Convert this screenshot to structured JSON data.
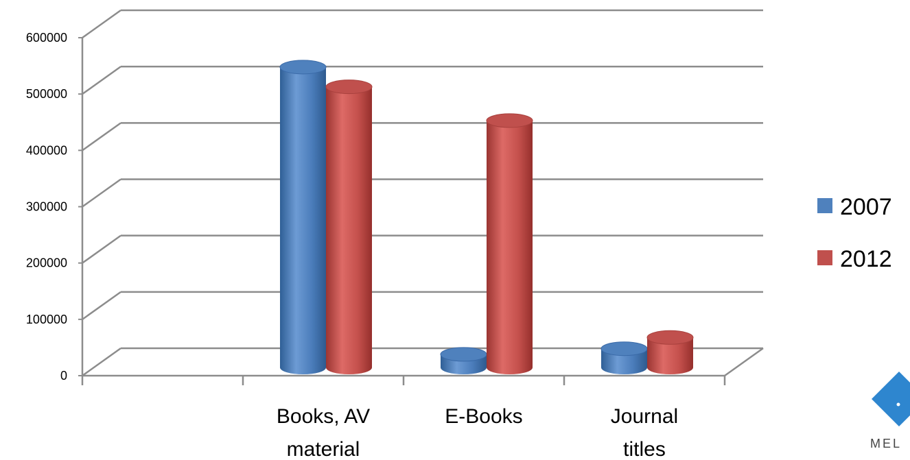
{
  "chart_data": {
    "type": "bar",
    "categories": [
      "",
      "Books, AV material",
      "E-Books",
      "Journal titles"
    ],
    "category_label_lines": [
      [],
      [
        "Books, AV",
        "material"
      ],
      [
        "E-Books"
      ],
      [
        "Journal",
        "titles"
      ]
    ],
    "series": [
      {
        "name": "2007",
        "values": [
          0,
          560000,
          50000,
          60000
        ]
      },
      {
        "name": "2012",
        "values": [
          0,
          525000,
          465000,
          80000
        ]
      }
    ],
    "ylim": [
      0,
      600000
    ],
    "yticks": [
      "0",
      "100000",
      "200000",
      "300000",
      "400000",
      "500000",
      "600000"
    ],
    "ytick_values": [
      0,
      100000,
      200000,
      300000,
      400000,
      500000,
      600000
    ],
    "grid": true,
    "legend_position": "right",
    "colors": {
      "2007": "#4F81BD",
      "2012": "#C0504D"
    }
  },
  "logo": {
    "text": "MEL"
  }
}
